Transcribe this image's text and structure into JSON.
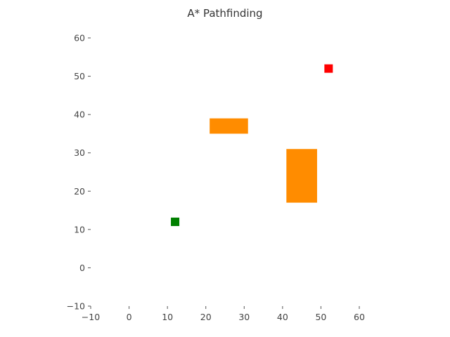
{
  "chart_data": {
    "type": "scatter",
    "title": "A* Pathfinding",
    "xlabel": "",
    "ylabel": "",
    "xlim": [
      -10,
      60
    ],
    "ylim": [
      -10,
      60
    ],
    "x_ticks": [
      -10,
      0,
      10,
      20,
      30,
      40,
      50,
      60
    ],
    "y_ticks": [
      -10,
      0,
      10,
      20,
      30,
      40,
      50,
      60
    ],
    "grid": false,
    "obstacles": [
      {
        "x_range": [
          21,
          31
        ],
        "y_range": [
          35,
          39
        ],
        "color": "#ff8c00"
      },
      {
        "x_range": [
          41,
          49
        ],
        "y_range": [
          17,
          31
        ],
        "color": "#ff8c00"
      }
    ],
    "points": [
      {
        "role": "start",
        "x": 12,
        "y": 12,
        "color": "#008000"
      },
      {
        "role": "goal",
        "x": 52,
        "y": 52,
        "color": "#ff0000"
      }
    ]
  }
}
